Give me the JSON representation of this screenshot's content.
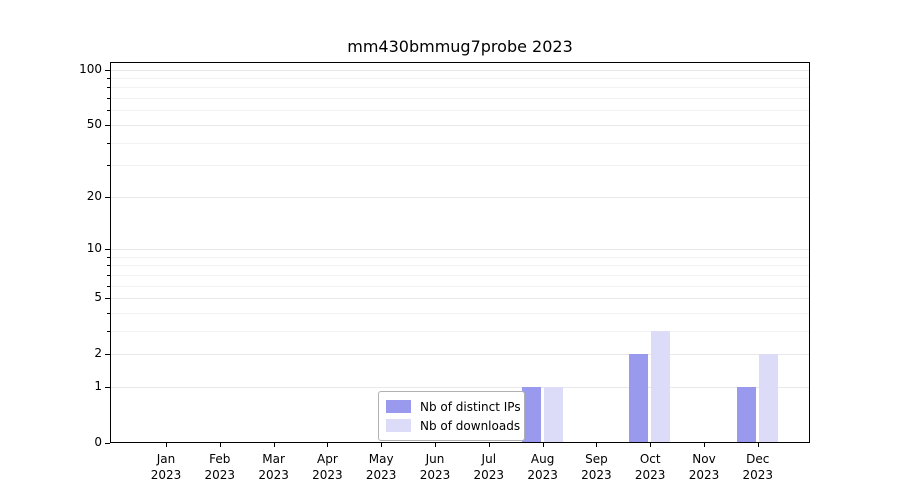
{
  "chart_data": {
    "type": "bar",
    "title": "mm430bmmug7probe 2023",
    "x_axis": {
      "year_label": "2023",
      "categories": [
        "Jan",
        "Feb",
        "Mar",
        "Apr",
        "May",
        "Jun",
        "Jul",
        "Aug",
        "Sep",
        "Oct",
        "Nov",
        "Dec"
      ]
    },
    "series": [
      {
        "key": "distinct-ips",
        "name": "Nb of distinct IPs",
        "color": "#9999ee",
        "values": [
          0,
          0,
          0,
          0,
          0,
          0,
          0,
          1,
          0,
          2,
          0,
          1
        ]
      },
      {
        "key": "downloads",
        "name": "Nb of downloads",
        "color": "#dcdcf8",
        "values": [
          0,
          0,
          0,
          0,
          0,
          0,
          0,
          1,
          0,
          3,
          0,
          2
        ]
      }
    ],
    "y_axis": {
      "scale": "log1p",
      "max": 110,
      "ticks": [
        0,
        1,
        2,
        5,
        10,
        20,
        50,
        100
      ],
      "minor_ticks": [
        3,
        4,
        6,
        7,
        8,
        9,
        30,
        40,
        60,
        70,
        80,
        90
      ]
    },
    "grid": "horizontal",
    "legend": {
      "position": "lower center",
      "entries": [
        "Nb of distinct IPs",
        "Nb of downloads"
      ]
    }
  }
}
